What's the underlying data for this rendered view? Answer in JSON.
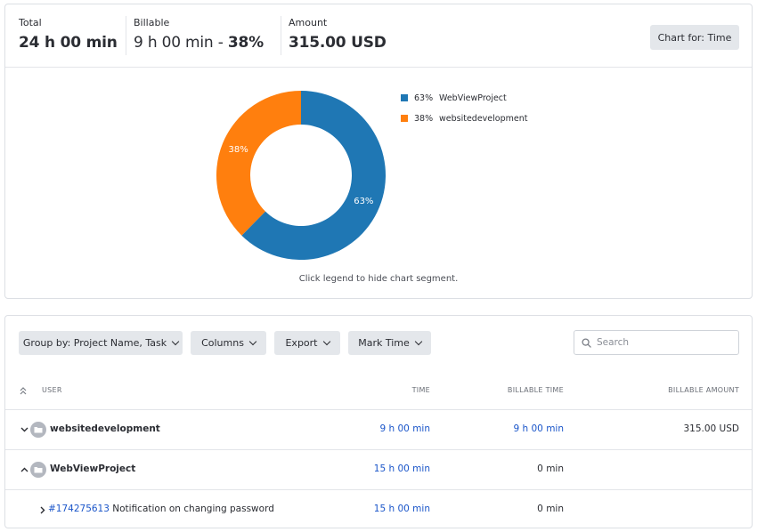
{
  "summary": {
    "total": {
      "label": "Total",
      "value": "24 h 00 min"
    },
    "billable": {
      "label": "Billable",
      "value": "9 h 00 min - ",
      "percent": "38%"
    },
    "amount": {
      "label": "Amount",
      "value": "315.00 USD"
    },
    "chart_for_label": "Chart for: Time"
  },
  "chart_hint": "Click legend to hide chart segment.",
  "chart_data": {
    "type": "pie",
    "donut": true,
    "categories": [
      "WebViewProject",
      "websitedevelopment"
    ],
    "values": [
      63,
      38
    ],
    "value_labels": [
      "63%",
      "38%"
    ],
    "colors": [
      "#1f77b4",
      "#ff7f0e"
    ],
    "legend": [
      {
        "pct": "63%",
        "name": "WebViewProject"
      },
      {
        "pct": "38%",
        "name": "websitedevelopment"
      }
    ],
    "legend_position": "right"
  },
  "toolbar": {
    "group_by_label": "Group by: Project Name, Task",
    "columns_label": "Columns",
    "export_label": "Export",
    "mark_time_label": "Mark Time",
    "search_placeholder": "Search"
  },
  "table": {
    "headers": {
      "user": "USER",
      "time": "TIME",
      "billable_time": "BILLABLE TIME",
      "billable_amount": "BILLABLE AMOUNT"
    },
    "rows": [
      {
        "name": "websitedevelopment",
        "time": "9 h 00 min",
        "billable_time": "9 h 00 min",
        "billable_amount": "315.00 USD"
      },
      {
        "name": "WebViewProject",
        "time": "15 h 00 min",
        "billable_time": "0 min",
        "billable_amount": ""
      },
      {
        "task_id": "#174275613",
        "task_name": " Notification on changing password",
        "time": "15 h 00 min",
        "billable_time": "0 min",
        "billable_amount": ""
      }
    ]
  },
  "colors": {
    "accent": "#1a55c9",
    "button_bg": "#e4e7eb",
    "border": "#dcdfe4"
  },
  "icons": [
    "search-icon",
    "chevron-down-icon",
    "chevron-up-icon",
    "chevron-right-icon",
    "collapse-all-icon",
    "folder-icon"
  ]
}
